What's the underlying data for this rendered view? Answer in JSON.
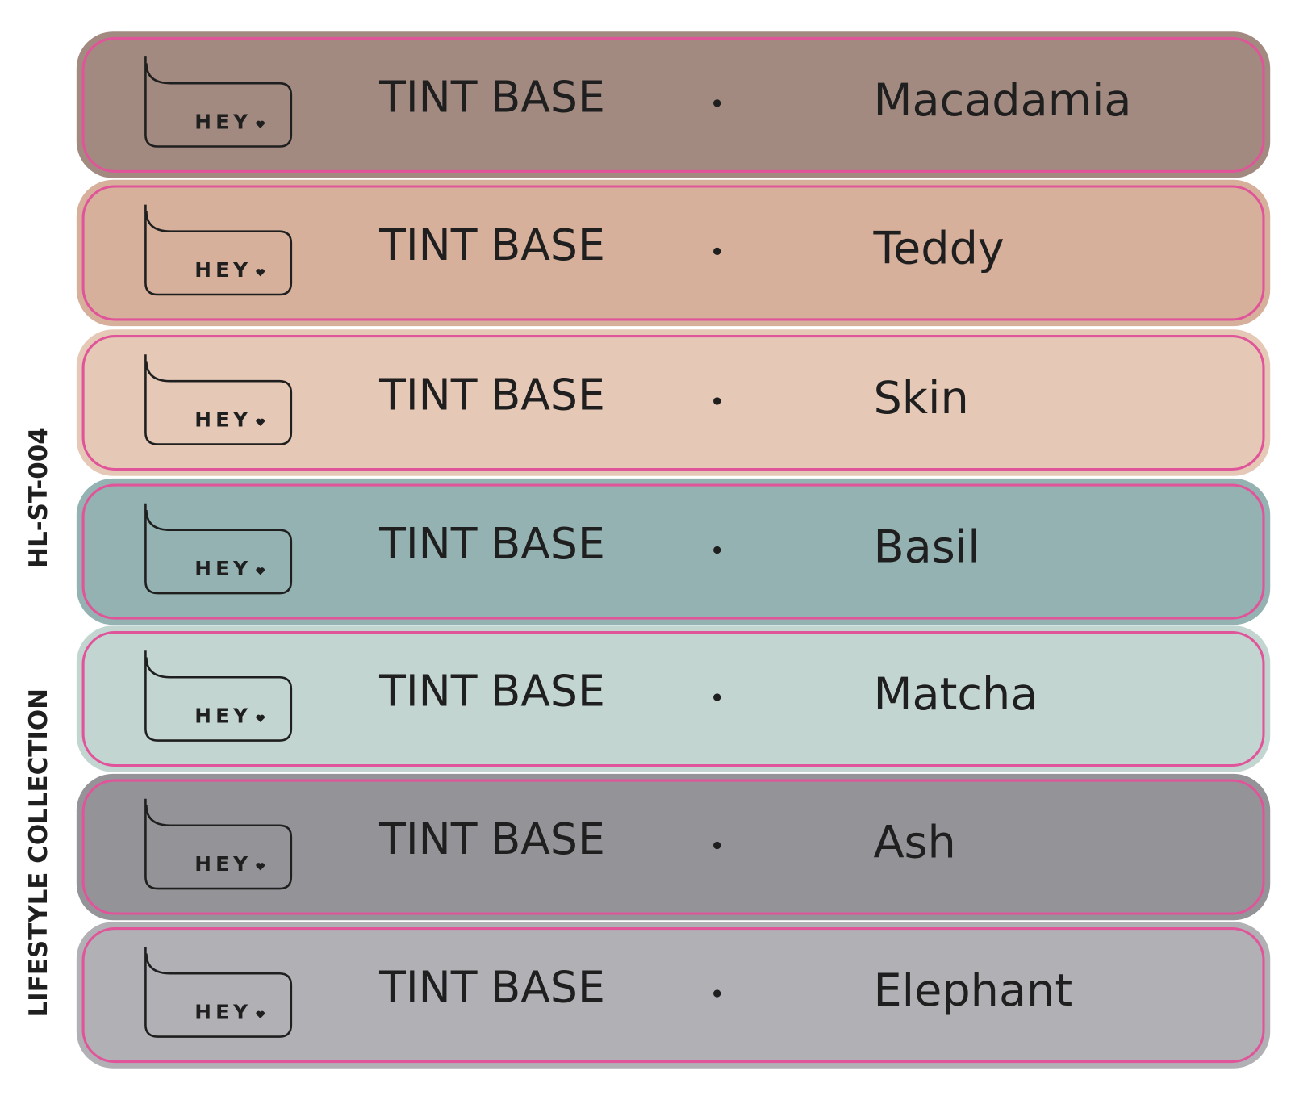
{
  "side_label": {
    "collection": "LIFESTYLE COLLECTION",
    "code": "HL-ST-004"
  },
  "rows": [
    {
      "logo": "HEY",
      "product": "TINT BASE",
      "name": "Macadamia",
      "color": "#a28a80"
    },
    {
      "logo": "HEY",
      "product": "TINT BASE",
      "name": "Teddy",
      "color": "#d7b09c"
    },
    {
      "logo": "HEY",
      "product": "TINT BASE",
      "name": "Skin",
      "color": "#e5c8b6"
    },
    {
      "logo": "HEY",
      "product": "TINT BASE",
      "name": "Basil",
      "color": "#93b2b1"
    },
    {
      "logo": "HEY",
      "product": "TINT BASE",
      "name": "Matcha",
      "color": "#c2d5d0"
    },
    {
      "logo": "HEY",
      "product": "TINT BASE",
      "name": "Ash",
      "color": "#949498"
    },
    {
      "logo": "HEY",
      "product": "TINT BASE",
      "name": "Elephant",
      "color": "#b1b0b5"
    }
  ]
}
